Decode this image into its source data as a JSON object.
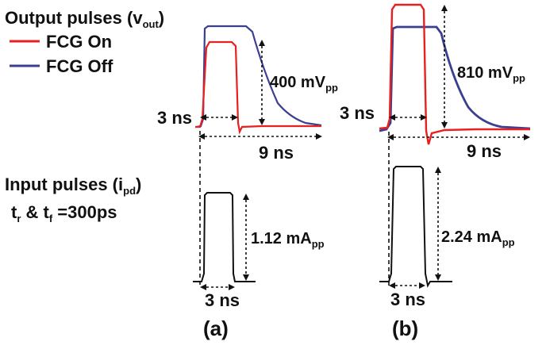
{
  "legend": {
    "title_main": "Output pulses (v",
    "title_sub": "out",
    "title_end": ")",
    "items": [
      {
        "label": "FCG On",
        "color": "#e8201f"
      },
      {
        "label": "FCG Off",
        "color": "#3b3f8f"
      }
    ]
  },
  "input_label": {
    "line1_main": "Input pulses (i",
    "line1_sub": "pd",
    "line1_end": ")",
    "line2_t1": "t",
    "line2_s1": "r",
    "line2_mid": " & t",
    "line2_s2": "f",
    "line2_end": " =300ps"
  },
  "panel_a": {
    "caption": "(a)",
    "output_amp_main": "400 mV",
    "output_amp_sub": "pp",
    "width_label": "3 ns",
    "period_label": "9 ns",
    "input_amp_main": "1.12 mA",
    "input_amp_sub": "pp",
    "input_width_label": "3 ns"
  },
  "panel_b": {
    "caption": "(b)",
    "output_amp_main": "810 mV",
    "output_amp_sub": "pp",
    "width_label": "3 ns",
    "period_label": "9 ns",
    "input_amp_main": "2.24 mA",
    "input_amp_sub": "pp",
    "input_width_label": "3 ns"
  },
  "colors": {
    "fcg_on": "#e8201f",
    "fcg_off": "#3b3f8f",
    "input": "#111111"
  }
}
